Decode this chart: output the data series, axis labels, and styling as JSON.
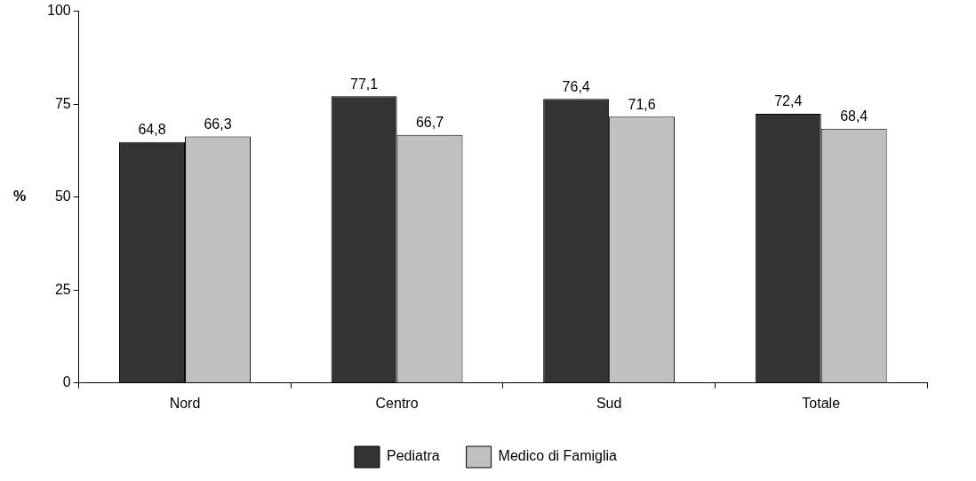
{
  "chart_data": {
    "type": "bar",
    "ylabel": "%",
    "categories": [
      "Nord",
      "Centro",
      "Sud",
      "Totale"
    ],
    "series": [
      {
        "name": "Pediatra",
        "color": "#333333",
        "values": [
          64.8,
          77.1,
          76.4,
          72.4
        ],
        "value_labels": [
          "64,8",
          "77,1",
          "76,4",
          "72,4"
        ]
      },
      {
        "name": "Medico di Famiglia",
        "color": "#c0c0c0",
        "values": [
          66.3,
          66.7,
          71.6,
          68.4
        ],
        "value_labels": [
          "66,3",
          "66,7",
          "71,6",
          "68,4"
        ]
      }
    ],
    "ylim": [
      0,
      100
    ],
    "yticks": [
      0,
      25,
      50,
      75,
      100
    ],
    "grid": false,
    "legend": "bottom"
  }
}
